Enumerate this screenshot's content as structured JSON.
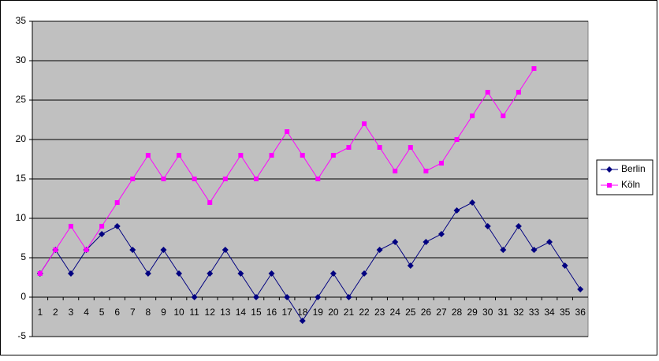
{
  "chart_data": {
    "type": "line",
    "categories": [
      1,
      2,
      3,
      4,
      5,
      6,
      7,
      8,
      9,
      10,
      11,
      12,
      13,
      14,
      15,
      16,
      17,
      18,
      19,
      20,
      21,
      22,
      23,
      24,
      25,
      26,
      27,
      28,
      29,
      30,
      31,
      32,
      33,
      34,
      35,
      36
    ],
    "series": [
      {
        "name": "Berlin",
        "color": "#000080",
        "marker": "diamond",
        "values": [
          3,
          6,
          3,
          6,
          8,
          9,
          6,
          3,
          6,
          3,
          0,
          3,
          6,
          3,
          0,
          3,
          0,
          -3,
          0,
          3,
          0,
          3,
          6,
          7,
          4,
          7,
          8,
          11,
          12,
          9,
          6,
          9,
          6,
          7,
          4,
          1
        ]
      },
      {
        "name": "Köln",
        "color": "#ff00ff",
        "marker": "square",
        "values": [
          3,
          6,
          9,
          6,
          9,
          12,
          15,
          18,
          15,
          18,
          15,
          12,
          15,
          18,
          15,
          18,
          21,
          18,
          15,
          18,
          19,
          22,
          19,
          16,
          19,
          16,
          17,
          20,
          23,
          26,
          23,
          26,
          29,
          null,
          null,
          null
        ]
      }
    ],
    "ylim": [
      -5,
      35
    ],
    "yticks": [
      -5,
      0,
      5,
      10,
      15,
      20,
      25,
      30,
      35
    ],
    "grid": true,
    "legend": "right"
  }
}
